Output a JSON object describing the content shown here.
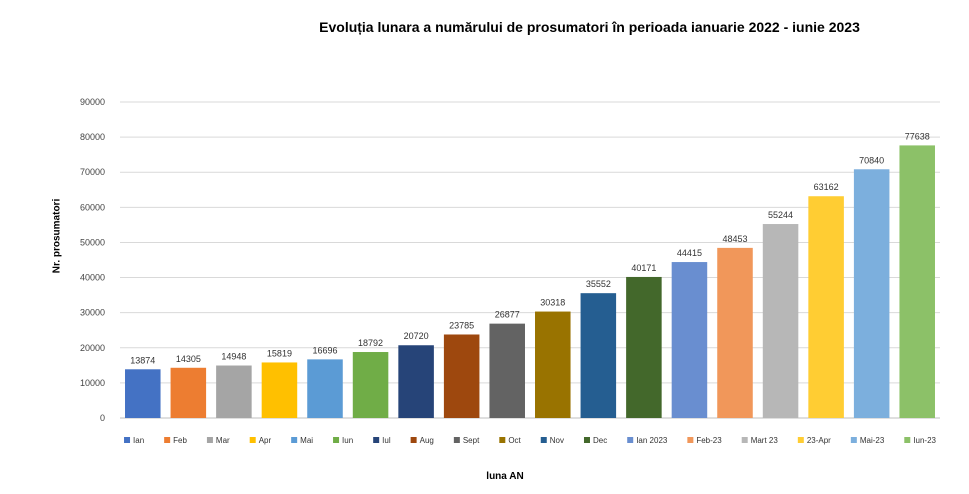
{
  "chart_data": {
    "type": "bar",
    "title": "Evoluția lunara a numărului de prosumatori în perioada ianuarie 2022 - iunie 2023",
    "xlabel": "luna AN",
    "ylabel": "Nr. prosumatori",
    "ylim": [
      0,
      90000
    ],
    "yticks": [
      "0",
      "10000",
      "20000",
      "30000",
      "40000",
      "50000",
      "60000",
      "70000",
      "80000",
      "90000"
    ],
    "grid": true,
    "legend_position": "bottom",
    "categories": [
      "Ian",
      "Feb",
      "Mar",
      "Apr",
      "Mai",
      "Iun",
      "Iul",
      "Aug",
      "Sept",
      "Oct",
      "Nov",
      "Dec",
      "Ian 2023",
      "Feb-23",
      "Mart 23",
      "23-Apr",
      "Mai-23",
      "Iun-23"
    ],
    "values": [
      13874,
      14305,
      14948,
      15819,
      16696,
      18792,
      20720,
      23785,
      26877,
      30318,
      35552,
      40171,
      44415,
      48453,
      55244,
      63162,
      70840,
      77638
    ],
    "data_labels": [
      "13874",
      "14305",
      "14948",
      "15819",
      "16696",
      "18792",
      "20720",
      "23785",
      "26877",
      "30318",
      "35552",
      "40171",
      "44415",
      "48453",
      "55244",
      "63162",
      "70840",
      "77638"
    ],
    "colors": [
      "#4472C4",
      "#ED7D31",
      "#A5A5A5",
      "#FFC000",
      "#5B9BD5",
      "#70AD47",
      "#264478",
      "#9E480E",
      "#636363",
      "#997300",
      "#255E91",
      "#43682B",
      "#698ED0",
      "#F1975A",
      "#B7B7B7",
      "#FFCD33",
      "#7CAFDD",
      "#8CC168"
    ]
  }
}
